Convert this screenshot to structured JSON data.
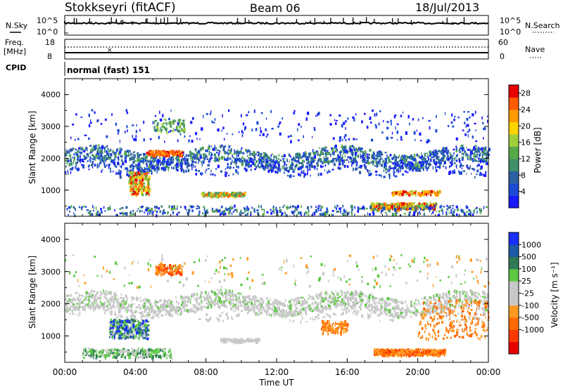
{
  "header": {
    "station": "Stokkseyri (fitACF)",
    "beam": "Beam 06",
    "date": "18/Jul/2013"
  },
  "left_labels": {
    "nsky": "N.Sky",
    "nsky_hi": "10^5",
    "nsky_lo": "10^0",
    "freq_line1": "Freq.",
    "freq_line2": "[MHz]",
    "freq_hi": "18",
    "freq_lo": "8",
    "cpid": "CPID"
  },
  "right_labels": {
    "nsearch": "N.Search",
    "nsearch_hi": "10^5",
    "nsearch_lo": "10^0",
    "nave": "Nave",
    "nave_hi": "60",
    "nave_lo": "0"
  },
  "cpid_text": "normal (fast) 151",
  "colors": {
    "power_scale": [
      "#1a1aff",
      "#1a4ad6",
      "#2e5fa0",
      "#3f8f6a",
      "#58a84a",
      "#9fcf3a",
      "#ffd200",
      "#ff9a00",
      "#ff5a00",
      "#e60000"
    ],
    "velocity_scale": [
      "#1a2fff",
      "#1b5aa5",
      "#2f7a55",
      "#5ac840",
      "#c8c8c8",
      "#c8c8c8",
      "#ff9a20",
      "#ff6a00",
      "#ff3a00",
      "#e60000"
    ]
  },
  "chart_data": [
    {
      "type": "line",
      "title": "",
      "xlabel": "",
      "ylabel": "",
      "x_range": [
        "00:00",
        "24:00"
      ],
      "series": [
        {
          "name": "N.Sky",
          "level": 1
        },
        {
          "name": "N.Search",
          "level": 0.3
        }
      ]
    },
    {
      "type": "scatter",
      "ylim": [
        8,
        18
      ],
      "series": [
        {
          "name": "Freq.",
          "level": 0.3
        },
        {
          "name": "Nave",
          "level": 0.7
        }
      ]
    },
    {
      "type": "heatmap",
      "title": "",
      "xlabel": "",
      "ylabel": "Slant Range [km]",
      "yticks": [
        "1000",
        "2000",
        "3000",
        "4000"
      ],
      "ylim": [
        180,
        4500
      ],
      "colorbar": {
        "label": "Power [dB]",
        "ticks": [
          "4",
          "8",
          "12",
          "16",
          "20",
          "24",
          "28"
        ],
        "range": [
          0,
          30
        ]
      }
    },
    {
      "type": "heatmap",
      "title": "",
      "xlabel": "Time UT",
      "ylabel": "Slant Range [km]",
      "yticks": [
        "1000",
        "2000",
        "3000",
        "4000"
      ],
      "xticks": [
        "00:00",
        "04:00",
        "08:00",
        "12:00",
        "16:00",
        "20:00",
        "00:00"
      ],
      "ylim": [
        180,
        4500
      ],
      "colorbar": {
        "label": "Velocity [m s⁻¹]",
        "ticks": [
          "1000",
          "500",
          "100",
          "25",
          "-25",
          "-100",
          "-500",
          "-1000"
        ],
        "range": [
          -1000,
          1000
        ]
      }
    }
  ]
}
